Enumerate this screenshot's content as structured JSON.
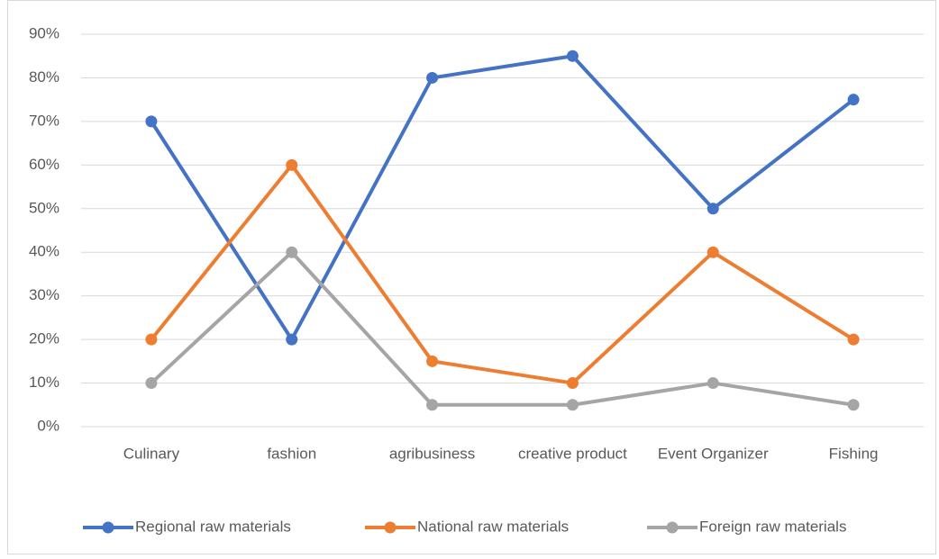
{
  "chart_data": {
    "type": "line",
    "categories": [
      "Culinary",
      "fashion",
      "agribusiness",
      "creative product",
      "Event Organizer",
      "Fishing"
    ],
    "series": [
      {
        "name": "Regional raw materials",
        "color": "#4472c4",
        "values": [
          70,
          20,
          80,
          85,
          50,
          75
        ]
      },
      {
        "name": "National raw materials",
        "color": "#ed7d31",
        "values": [
          20,
          60,
          15,
          10,
          40,
          20
        ]
      },
      {
        "name": "Foreign raw materials",
        "color": "#a5a5a5",
        "values": [
          10,
          40,
          5,
          5,
          10,
          5
        ]
      }
    ],
    "ylim": [
      0,
      90
    ],
    "yticks": [
      {
        "value": 0,
        "label": "0%"
      },
      {
        "value": 10,
        "label": "10%"
      },
      {
        "value": 20,
        "label": "20%"
      },
      {
        "value": 30,
        "label": "30%"
      },
      {
        "value": 40,
        "label": "40%"
      },
      {
        "value": 50,
        "label": "50%"
      },
      {
        "value": 60,
        "label": "60%"
      },
      {
        "value": 70,
        "label": "70%"
      },
      {
        "value": 80,
        "label": "80%"
      },
      {
        "value": 90,
        "label": "90%"
      }
    ],
    "grid": true,
    "legend": "bottom"
  }
}
